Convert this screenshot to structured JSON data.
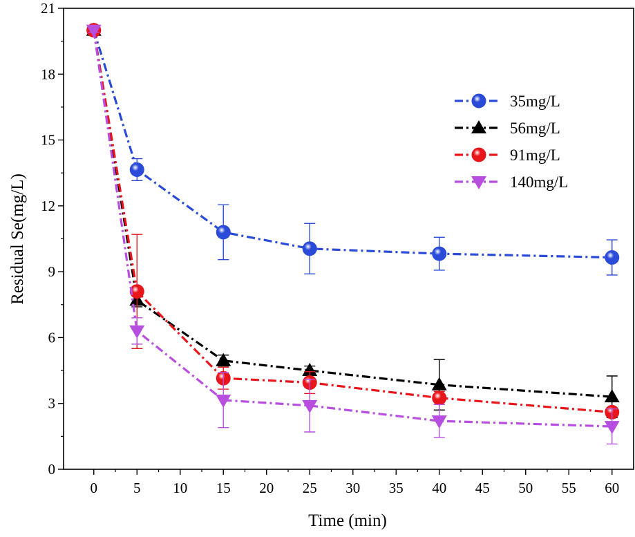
{
  "chart_data": {
    "type": "line",
    "title": "",
    "xlabel": "Time (min)",
    "ylabel": "Residual Se(mg/L)",
    "xlim": [
      -3.5,
      62.5
    ],
    "ylim": [
      0,
      21
    ],
    "xticks": [
      0,
      5,
      10,
      15,
      20,
      25,
      30,
      35,
      40,
      45,
      50,
      55,
      60
    ],
    "yticks": [
      0,
      3,
      6,
      9,
      12,
      15,
      18,
      21
    ],
    "grid": false,
    "legend_position": "top-right",
    "x": [
      0,
      5,
      15,
      25,
      40,
      60
    ],
    "series": [
      {
        "name": "35mg/L",
        "color": "#2a4bd7",
        "marker": "circle",
        "values": [
          20.0,
          13.65,
          10.8,
          10.05,
          9.82,
          9.65
        ],
        "errors": [
          0.1,
          0.5,
          1.25,
          1.15,
          0.75,
          0.8
        ]
      },
      {
        "name": "56mg/L",
        "color": "#000000",
        "marker": "triangle-up",
        "values": [
          20.0,
          7.7,
          4.95,
          4.5,
          3.85,
          3.3
        ],
        "errors": [
          0.1,
          0.3,
          0.25,
          0.2,
          1.15,
          0.95
        ]
      },
      {
        "name": "91mg/L",
        "color": "#e8151b",
        "marker": "circle",
        "values": [
          20.0,
          8.1,
          4.15,
          3.95,
          3.25,
          2.6
        ],
        "errors": [
          0.1,
          2.6,
          0.5,
          0.5,
          0.3,
          0.2
        ]
      },
      {
        "name": "140mg/L",
        "color": "#b84ee0",
        "marker": "triangle-down",
        "values": [
          20.0,
          6.3,
          3.15,
          2.9,
          2.2,
          1.95
        ],
        "errors": [
          0.1,
          0.6,
          1.25,
          1.2,
          0.75,
          0.8
        ]
      }
    ]
  }
}
